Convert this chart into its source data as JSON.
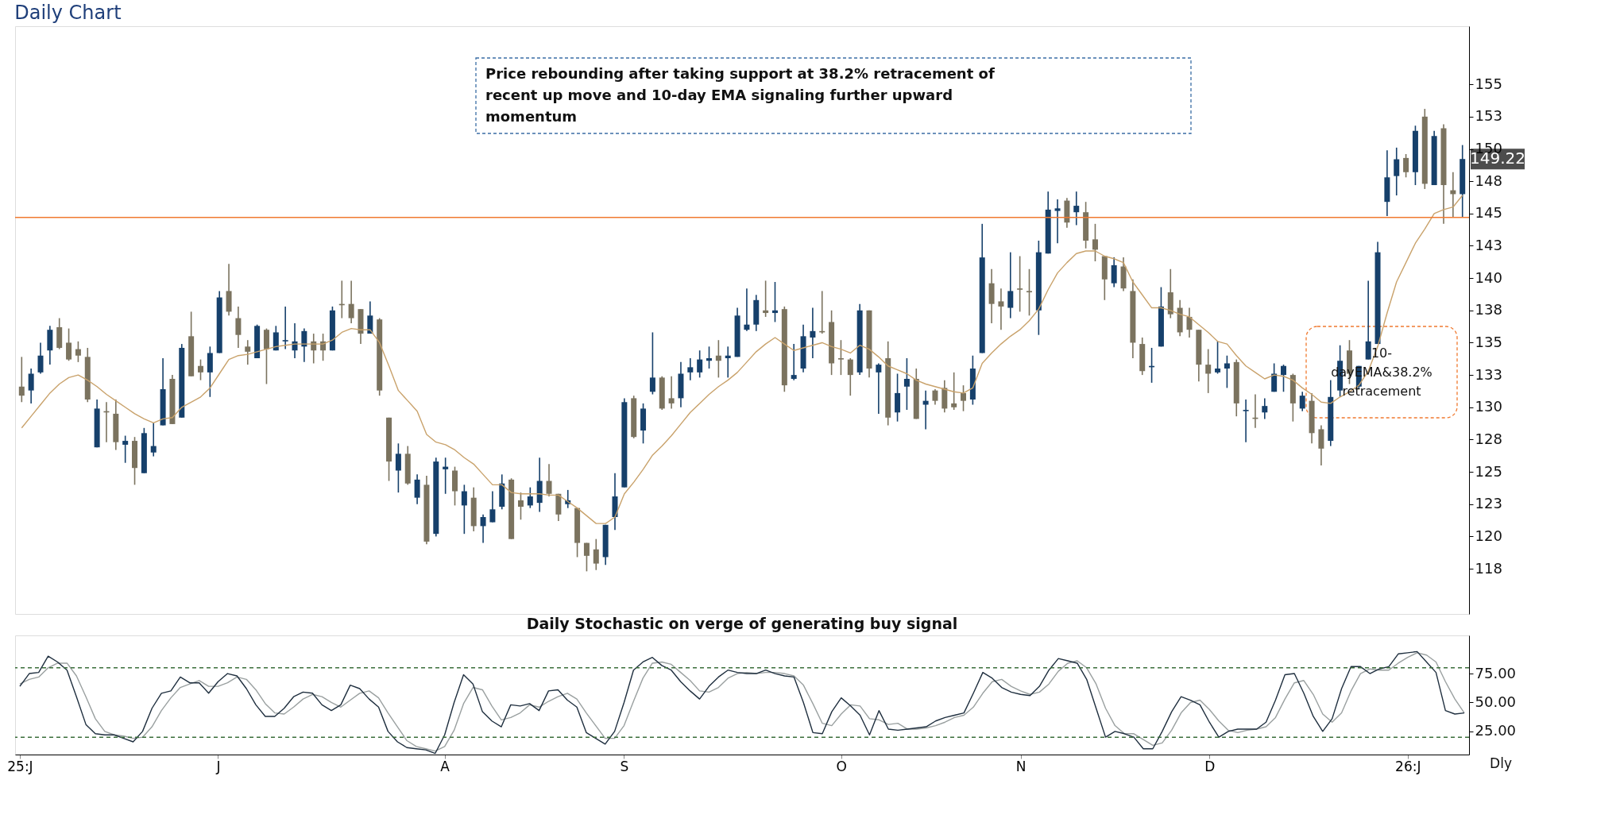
{
  "chart_data": [
    {
      "type": "candlestick",
      "title": "Daily Chart",
      "categories": [
        null,
        null,
        null,
        null,
        null,
        null,
        null,
        null,
        null,
        null,
        null,
        null,
        null,
        null,
        null,
        null,
        null,
        null,
        null,
        null,
        null,
        null,
        null,
        null,
        null,
        null,
        null,
        null,
        null,
        null,
        null,
        null,
        null,
        null,
        null,
        null,
        null,
        null,
        null,
        null,
        null,
        null,
        null,
        null,
        null,
        null,
        null,
        null,
        null,
        null,
        null,
        null,
        null,
        null,
        null,
        null,
        null,
        null,
        null,
        null,
        null,
        null,
        null,
        null,
        null,
        null,
        null,
        null,
        null,
        null,
        null,
        null,
        null,
        null,
        null,
        null,
        null,
        null,
        null,
        null,
        null,
        null,
        null,
        null,
        null,
        null,
        null,
        null,
        null,
        null,
        null,
        null,
        null,
        null,
        null,
        null,
        null,
        null,
        null,
        null,
        null,
        null,
        null,
        null,
        null,
        null,
        null,
        null,
        null,
        null,
        null,
        null,
        null,
        null,
        null,
        null,
        null,
        null,
        null,
        null,
        null,
        null,
        null,
        null,
        null,
        null,
        null,
        null,
        null,
        null,
        null,
        null,
        null,
        null,
        null,
        null,
        null,
        null,
        null,
        null,
        null,
        null,
        null,
        null,
        null,
        null,
        null,
        null,
        null,
        null,
        null,
        null,
        null,
        null
      ],
      "ohlc": [
        [
          131.6,
          133.9,
          130.4,
          130.9
        ],
        [
          131.3,
          133.0,
          130.3,
          132.6
        ],
        [
          132.7,
          135.0,
          132.6,
          134.0
        ],
        [
          134.4,
          136.3,
          133.3,
          136.0
        ],
        [
          136.2,
          136.9,
          134.5,
          134.6
        ],
        [
          135.0,
          136.1,
          133.6,
          133.7
        ],
        [
          134.5,
          135.1,
          133.5,
          134.0
        ],
        [
          133.9,
          134.6,
          130.4,
          130.6
        ],
        [
          126.9,
          130.6,
          126.9,
          129.9
        ],
        [
          129.7,
          130.4,
          127.3,
          129.6
        ],
        [
          129.5,
          130.6,
          126.7,
          127.3
        ],
        [
          127.1,
          127.8,
          125.7,
          127.4
        ],
        [
          127.4,
          127.7,
          124.0,
          125.3
        ],
        [
          124.9,
          128.4,
          124.9,
          128.0
        ],
        [
          126.5,
          128.8,
          126.2,
          127.0
        ],
        [
          128.6,
          133.8,
          128.6,
          131.4
        ],
        [
          132.2,
          132.5,
          128.7,
          128.7
        ],
        [
          129.2,
          134.9,
          129.2,
          134.6
        ],
        [
          135.5,
          137.4,
          132.4,
          132.4
        ],
        [
          133.2,
          133.7,
          132.1,
          132.7
        ],
        [
          132.7,
          134.7,
          130.8,
          134.2
        ],
        [
          134.2,
          139.0,
          134.2,
          138.5
        ],
        [
          139.0,
          141.1,
          137.1,
          137.4
        ],
        [
          136.9,
          137.8,
          134.6,
          135.6
        ],
        [
          134.7,
          135.2,
          133.3,
          134.3
        ],
        [
          133.8,
          136.4,
          133.8,
          136.3
        ],
        [
          136.0,
          136.1,
          131.8,
          134.5
        ],
        [
          134.4,
          136.3,
          134.4,
          135.8
        ],
        [
          135.1,
          137.8,
          134.5,
          135.2
        ],
        [
          134.4,
          136.5,
          133.8,
          135.1
        ],
        [
          134.7,
          136.1,
          133.5,
          135.9
        ],
        [
          135.1,
          135.7,
          133.4,
          134.4
        ],
        [
          135.1,
          135.7,
          133.6,
          134.4
        ],
        [
          134.4,
          137.8,
          134.4,
          137.5
        ],
        [
          138.0,
          139.8,
          136.9,
          137.9
        ],
        [
          138.0,
          139.8,
          136.5,
          136.9
        ],
        [
          137.6,
          137.6,
          134.9,
          135.7
        ],
        [
          135.7,
          138.2,
          135.7,
          137.1
        ],
        [
          136.8,
          136.9,
          130.9,
          131.3
        ],
        [
          129.2,
          129.2,
          124.3,
          125.8
        ],
        [
          125.1,
          127.2,
          123.4,
          126.4
        ],
        [
          126.4,
          127.0,
          124.0,
          124.1
        ],
        [
          123.0,
          124.8,
          122.5,
          124.4
        ],
        [
          124.0,
          124.7,
          119.4,
          119.6
        ],
        [
          120.2,
          126.1,
          120.0,
          125.8
        ],
        [
          125.2,
          126.1,
          123.3,
          125.4
        ],
        [
          125.1,
          125.4,
          122.4,
          123.5
        ],
        [
          122.4,
          124.0,
          120.2,
          123.5
        ],
        [
          123.0,
          123.8,
          120.4,
          120.8
        ],
        [
          120.8,
          121.7,
          119.5,
          121.5
        ],
        [
          121.1,
          123.5,
          121.1,
          122.1
        ],
        [
          122.3,
          124.8,
          122.1,
          124.1
        ],
        [
          124.4,
          124.5,
          119.8,
          119.8
        ],
        [
          122.8,
          123.4,
          121.3,
          122.3
        ],
        [
          122.4,
          123.8,
          122.2,
          123.1
        ],
        [
          122.6,
          126.1,
          121.9,
          124.3
        ],
        [
          124.3,
          125.6,
          123.1,
          123.3
        ],
        [
          123.3,
          123.3,
          121.2,
          121.7
        ],
        [
          122.5,
          123.6,
          122.2,
          122.8
        ],
        [
          122.2,
          122.2,
          118.4,
          119.5
        ],
        [
          119.5,
          119.5,
          117.3,
          118.5
        ],
        [
          119.0,
          119.8,
          117.4,
          117.9
        ],
        [
          118.4,
          120.9,
          117.8,
          120.9
        ],
        [
          121.5,
          124.9,
          120.5,
          123.1
        ],
        [
          123.8,
          130.7,
          123.8,
          130.4
        ],
        [
          130.7,
          130.9,
          127.6,
          127.7
        ],
        [
          128.2,
          130.3,
          127.2,
          129.9
        ],
        [
          131.2,
          135.8,
          131.0,
          132.3
        ],
        [
          132.3,
          132.4,
          129.8,
          129.9
        ],
        [
          130.7,
          132.4,
          129.9,
          130.3
        ],
        [
          130.7,
          133.5,
          130.0,
          132.6
        ],
        [
          132.7,
          133.8,
          132.1,
          133.1
        ],
        [
          132.7,
          134.4,
          132.3,
          133.7
        ],
        [
          133.6,
          134.7,
          133.0,
          133.8
        ],
        [
          134.0,
          135.2,
          132.3,
          133.6
        ],
        [
          133.8,
          134.7,
          132.3,
          134.0
        ],
        [
          133.9,
          137.7,
          133.9,
          137.1
        ],
        [
          136.0,
          139.2,
          135.9,
          136.4
        ],
        [
          136.4,
          138.7,
          135.9,
          138.3
        ],
        [
          137.5,
          139.8,
          137.0,
          137.3
        ],
        [
          137.3,
          139.7,
          136.6,
          137.5
        ],
        [
          137.6,
          137.8,
          131.2,
          131.7
        ],
        [
          132.2,
          134.9,
          132.1,
          132.5
        ],
        [
          133.0,
          136.4,
          132.7,
          135.5
        ],
        [
          135.4,
          137.7,
          133.8,
          135.9
        ],
        [
          135.9,
          139.0,
          135.7,
          135.8
        ],
        [
          136.6,
          137.5,
          132.5,
          133.4
        ],
        [
          133.8,
          135.2,
          132.5,
          133.7
        ],
        [
          133.7,
          133.8,
          130.9,
          132.5
        ],
        [
          132.7,
          138.0,
          132.5,
          137.5
        ],
        [
          137.5,
          137.5,
          132.3,
          133.0
        ],
        [
          132.7,
          133.4,
          129.5,
          133.3
        ],
        [
          133.8,
          135.1,
          128.6,
          129.2
        ],
        [
          129.6,
          132.6,
          128.9,
          131.1
        ],
        [
          131.6,
          133.8,
          129.8,
          132.2
        ],
        [
          132.2,
          133.0,
          129.1,
          129.1
        ],
        [
          130.2,
          131.3,
          128.3,
          130.5
        ],
        [
          131.3,
          131.4,
          130.2,
          130.5
        ],
        [
          131.5,
          132.1,
          129.6,
          129.9
        ],
        [
          130.3,
          132.7,
          129.8,
          130.0
        ],
        [
          131.1,
          131.7,
          129.7,
          130.5
        ],
        [
          130.6,
          134.0,
          130.2,
          133.0
        ],
        [
          134.2,
          144.2,
          134.2,
          141.6
        ],
        [
          139.6,
          140.7,
          136.5,
          138.0
        ],
        [
          138.2,
          139.2,
          136.0,
          137.8
        ],
        [
          137.7,
          142.0,
          136.9,
          139.0
        ],
        [
          139.2,
          141.7,
          137.4,
          139.1
        ],
        [
          139.0,
          140.7,
          137.1,
          138.9
        ],
        [
          137.5,
          142.9,
          135.6,
          142.0
        ],
        [
          141.9,
          146.7,
          141.9,
          145.3
        ],
        [
          145.2,
          146.1,
          142.7,
          145.4
        ],
        [
          146.0,
          146.2,
          143.9,
          144.3
        ],
        [
          145.1,
          146.7,
          144.1,
          145.6
        ],
        [
          145.1,
          145.9,
          142.3,
          142.9
        ],
        [
          143.0,
          144.2,
          141.3,
          142.2
        ],
        [
          141.7,
          141.7,
          138.3,
          139.9
        ],
        [
          139.6,
          141.6,
          139.3,
          141.0
        ],
        [
          140.9,
          141.6,
          139.0,
          139.2
        ],
        [
          139.0,
          139.9,
          133.8,
          135.0
        ],
        [
          134.9,
          135.4,
          132.5,
          132.8
        ],
        [
          133.1,
          134.6,
          131.9,
          133.2
        ],
        [
          134.7,
          139.3,
          134.7,
          137.8
        ],
        [
          138.9,
          140.7,
          136.9,
          137.2
        ],
        [
          137.7,
          138.3,
          135.5,
          135.8
        ],
        [
          137.0,
          137.7,
          135.4,
          136.0
        ],
        [
          136.0,
          136.0,
          132.0,
          133.3
        ],
        [
          133.3,
          134.5,
          131.1,
          132.6
        ],
        [
          132.7,
          135.1,
          132.6,
          133.0
        ],
        [
          133.0,
          134.0,
          131.5,
          133.4
        ],
        [
          133.5,
          133.7,
          129.3,
          130.3
        ],
        [
          129.7,
          130.6,
          127.3,
          129.8
        ],
        [
          129.2,
          131.0,
          128.4,
          129.1
        ],
        [
          129.6,
          130.7,
          129.1,
          130.1
        ],
        [
          131.2,
          133.4,
          131.2,
          132.6
        ],
        [
          132.5,
          133.3,
          131.2,
          133.2
        ],
        [
          132.5,
          132.6,
          128.9,
          130.3
        ],
        [
          129.9,
          131.2,
          129.7,
          130.9
        ],
        [
          130.5,
          131.1,
          127.2,
          128.0
        ],
        [
          128.3,
          128.6,
          125.5,
          126.8
        ],
        [
          127.4,
          132.1,
          127.0,
          130.8
        ],
        [
          131.3,
          134.8,
          130.8,
          133.6
        ],
        [
          134.4,
          135.2,
          131.8,
          132.6
        ],
        [
          131.6,
          133.2,
          131.4,
          133.2
        ],
        [
          133.7,
          139.8,
          133.7,
          135.1
        ],
        [
          134.9,
          142.8,
          134.9,
          142.0
        ],
        [
          145.9,
          149.9,
          144.8,
          147.8
        ],
        [
          147.9,
          150.1,
          146.4,
          149.2
        ],
        [
          149.3,
          149.6,
          147.8,
          148.2
        ],
        [
          148.2,
          151.8,
          147.2,
          151.4
        ],
        [
          152.5,
          153.1,
          146.9,
          147.3
        ],
        [
          147.2,
          151.4,
          147.2,
          151.0
        ],
        [
          151.6,
          151.9,
          144.2,
          147.2
        ],
        [
          146.8,
          148.2,
          144.7,
          146.5
        ],
        [
          146.5,
          150.3,
          144.7,
          149.22
        ]
      ],
      "colors": [
        "#7b735f",
        "#16406b",
        "#16406b",
        "#16406b",
        "#7b735f",
        "#7b735f",
        "#7b735f",
        "#7b735f",
        "#16406b",
        "#7b735f",
        "#7b735f",
        "#16406b",
        "#7b735f",
        "#16406b",
        "#16406b",
        "#16406b",
        "#7b735f",
        "#16406b",
        "#7b735f",
        "#7b735f",
        "#16406b",
        "#16406b",
        "#7b735f",
        "#7b735f",
        "#7b735f",
        "#16406b",
        "#7b735f",
        "#16406b",
        "#16406b",
        "#16406b",
        "#16406b",
        "#7b735f",
        "#7b735f",
        "#16406b",
        "#7b735f",
        "#7b735f",
        "#7b735f",
        "#16406b",
        "#7b735f",
        "#7b735f",
        "#16406b",
        "#7b735f",
        "#16406b",
        "#7b735f",
        "#16406b",
        "#16406b",
        "#7b735f",
        "#16406b",
        "#7b735f",
        "#16406b",
        "#16406b",
        "#16406b",
        "#7b735f",
        "#7b735f",
        "#16406b",
        "#16406b",
        "#7b735f",
        "#7b735f",
        "#16406b",
        "#7b735f",
        "#7b735f",
        "#7b735f",
        "#16406b",
        "#16406b",
        "#16406b",
        "#7b735f",
        "#16406b",
        "#16406b",
        "#7b735f",
        "#7b735f",
        "#16406b",
        "#16406b",
        "#16406b",
        "#16406b",
        "#7b735f",
        "#16406b",
        "#16406b",
        "#16406b",
        "#16406b",
        "#7b735f",
        "#16406b",
        "#7b735f",
        "#16406b",
        "#16406b",
        "#16406b",
        "#7b735f",
        "#7b735f",
        "#7b735f",
        "#7b735f",
        "#16406b",
        "#7b735f",
        "#16406b",
        "#7b735f",
        "#16406b",
        "#16406b",
        "#7b735f",
        "#16406b",
        "#7b735f",
        "#7b735f",
        "#7b735f",
        "#7b735f",
        "#16406b",
        "#16406b",
        "#7b735f",
        "#7b735f",
        "#16406b",
        "#7b735f",
        "#7b735f",
        "#16406b",
        "#16406b",
        "#16406b",
        "#7b735f",
        "#16406b",
        "#7b735f",
        "#7b735f",
        "#7b735f",
        "#16406b",
        "#7b735f",
        "#7b735f",
        "#7b735f",
        "#16406b",
        "#16406b",
        "#7b735f",
        "#7b735f",
        "#7b735f",
        "#7b735f",
        "#7b735f",
        "#16406b",
        "#16406b",
        "#7b735f",
        "#16406b",
        "#7b735f",
        "#16406b",
        "#16406b",
        "#16406b",
        "#7b735f",
        "#16406b",
        "#7b735f",
        "#7b735f",
        "#16406b",
        "#16406b",
        "#7b735f",
        "#16406b",
        "#16406b",
        "#16406b",
        "#16406b",
        "#16406b",
        "#7b735f",
        "#16406b",
        "#7b735f",
        "#16406b",
        "#7b735f",
        "#7b735f",
        "#16406b"
      ],
      "series": [
        {
          "type": "line",
          "color": "#c9a26b",
          "values": [
            128.4,
            129.3,
            130.2,
            131.1,
            131.8,
            132.3,
            132.5,
            132.1,
            131.6,
            131.0,
            130.5,
            130.0,
            129.5,
            129.1,
            128.8,
            129.1,
            129.2,
            130.0,
            130.4,
            130.8,
            131.5,
            132.6,
            133.7,
            134.0,
            134.1,
            134.3,
            134.5,
            134.7,
            134.8,
            134.9,
            134.9,
            134.9,
            134.9,
            135.2,
            135.8,
            136.1,
            136.0,
            136.0,
            135.0,
            133.2,
            131.3,
            130.5,
            129.7,
            127.9,
            127.3,
            127.1,
            126.7,
            126.1,
            125.6,
            124.8,
            124.0,
            124.0,
            123.4,
            123.3,
            123.3,
            123.3,
            123.2,
            123.2,
            122.7,
            122.2,
            121.6,
            121.0,
            121.0,
            121.5,
            123.3,
            124.2,
            125.2,
            126.3,
            127.0,
            127.8,
            128.7,
            129.6,
            130.3,
            131.0,
            131.6,
            132.1,
            132.7,
            133.5,
            134.3,
            134.9,
            135.4,
            134.9,
            134.4,
            134.6,
            134.8,
            135.0,
            134.7,
            134.5,
            134.2,
            134.8,
            134.5,
            133.9,
            133.2,
            132.9,
            132.6,
            132.1,
            131.8,
            131.6,
            131.4,
            131.2,
            131.1,
            131.5,
            133.4,
            134.2,
            134.9,
            135.5,
            136.0,
            136.7,
            137.6,
            139.1,
            140.4,
            141.2,
            141.9,
            142.1,
            142.1,
            141.7,
            141.5,
            141.2,
            139.7,
            138.7,
            137.7,
            137.7,
            137.5,
            137.2,
            137.0,
            136.4,
            135.8,
            135.1,
            134.9,
            134.0,
            133.2,
            132.7,
            132.2,
            132.5,
            132.4,
            132.1,
            131.5,
            131.0,
            130.4,
            130.3,
            130.8,
            131.2,
            131.7,
            132.8,
            134.7,
            137.3,
            139.7,
            141.2,
            142.7,
            143.8,
            145.0,
            145.3,
            145.5,
            146.4
          ]
        }
      ],
      "ylim": [
        114,
        159.5
      ],
      "yticks": [
        {
          "value": 117.5,
          "label": "118"
        },
        120,
        {
          "value": 122.5,
          "label": "123"
        },
        125,
        {
          "value": 127.5,
          "label": "128"
        },
        130,
        {
          "value": 132.5,
          "label": "133"
        },
        135,
        {
          "value": 137.5,
          "label": "138"
        },
        140,
        {
          "value": 142.5,
          "label": "143"
        },
        145,
        {
          "value": 147.5,
          "label": "148"
        },
        150,
        {
          "value": 152.5,
          "label": "153"
        },
        155
      ],
      "tick_labels": "y",
      "ref_lines": [
        {
          "axis": "y",
          "value": 144.7,
          "color": "#f07a30"
        }
      ],
      "annotations": [
        "Price rebounding after taking support at 38.2% retracement of recent up move and 10-day EMA signaling further upward momentum",
        "10-dayEMA&38.2% retracement",
        "149.22"
      ]
    },
    {
      "type": "line",
      "title": "Daily Stochastic on verge of generating buy signal",
      "categories": [
        "25:J",
        null,
        null,
        null,
        null,
        null,
        null,
        null,
        null,
        null,
        null,
        null,
        null,
        null,
        null,
        null,
        null,
        null,
        null,
        null,
        null,
        "J",
        null,
        null,
        null,
        null,
        null,
        null,
        null,
        null,
        null,
        null,
        null,
        null,
        null,
        null,
        null,
        null,
        null,
        null,
        null,
        null,
        null,
        null,
        null,
        "A",
        null,
        null,
        null,
        null,
        null,
        null,
        null,
        null,
        null,
        null,
        null,
        null,
        null,
        null,
        null,
        null,
        null,
        null,
        "S",
        null,
        null,
        null,
        null,
        null,
        null,
        null,
        null,
        null,
        null,
        null,
        null,
        null,
        null,
        null,
        null,
        null,
        null,
        null,
        null,
        null,
        null,
        "O",
        null,
        null,
        null,
        null,
        null,
        null,
        null,
        null,
        null,
        null,
        null,
        null,
        null,
        null,
        null,
        null,
        null,
        null,
        "N",
        null,
        null,
        null,
        null,
        null,
        null,
        null,
        null,
        null,
        null,
        null,
        null,
        null,
        null,
        null,
        null,
        null,
        null,
        null,
        "D",
        null,
        null,
        null,
        null,
        null,
        null,
        null,
        null,
        null,
        null,
        null,
        null,
        null,
        null,
        null,
        null,
        null,
        null,
        null,
        null,
        "26:J",
        null,
        null,
        null,
        null,
        null,
        null
      ],
      "series": [
        {
          "color": "#9aa0a0",
          "values": [
            66,
            70,
            72,
            80,
            84,
            84,
            73,
            55,
            36,
            25,
            22,
            21,
            19,
            20,
            29,
            43,
            54,
            63,
            66,
            69,
            64,
            64,
            67,
            72,
            70,
            61,
            49,
            41,
            40,
            46,
            53,
            57,
            55,
            50,
            46,
            52,
            58,
            60,
            54,
            41,
            29,
            17,
            12,
            10,
            8,
            12,
            26,
            49,
            63,
            61,
            47,
            35,
            37,
            41,
            48,
            46,
            51,
            55,
            58,
            53,
            41,
            30,
            19,
            19,
            30,
            51,
            71,
            84,
            85,
            83,
            76,
            69,
            60,
            59,
            63,
            71,
            75,
            76,
            75,
            76,
            76,
            75,
            73,
            65,
            49,
            32,
            30,
            40,
            48,
            47,
            36,
            35,
            31,
            32,
            27,
            27,
            28,
            30,
            33,
            37,
            39,
            46,
            58,
            68,
            70,
            64,
            60,
            57,
            59,
            66,
            77,
            84,
            86,
            80,
            66,
            45,
            30,
            23,
            23,
            18,
            13,
            15,
            26,
            41,
            50,
            52,
            44,
            34,
            26,
            24,
            26,
            27,
            29,
            37,
            53,
            67,
            69,
            57,
            40,
            33,
            41,
            60,
            75,
            79,
            78,
            78,
            84,
            89,
            93,
            91,
            85,
            68,
            53,
            41
          ]
        },
        {
          "color": "#1f2f3f",
          "values": [
            64,
            75,
            76,
            90,
            85,
            78,
            55,
            31,
            23,
            22,
            22,
            19,
            16,
            25,
            45,
            58,
            60,
            72,
            67,
            67,
            58,
            68,
            75,
            73,
            62,
            48,
            38,
            38,
            45,
            55,
            59,
            58,
            48,
            43,
            48,
            65,
            62,
            53,
            46,
            25,
            16,
            11,
            10,
            9,
            6,
            22,
            50,
            74,
            66,
            42,
            34,
            29,
            48,
            47,
            49,
            43,
            60,
            61,
            52,
            46,
            24,
            19,
            14,
            25,
            50,
            78,
            85,
            89,
            82,
            78,
            68,
            60,
            53,
            64,
            72,
            78,
            76,
            75,
            75,
            78,
            75,
            73,
            72,
            50,
            24,
            23,
            42,
            54,
            47,
            39,
            22,
            43,
            27,
            26,
            27,
            28,
            29,
            34,
            37,
            39,
            41,
            58,
            76,
            71,
            63,
            59,
            57,
            56,
            64,
            78,
            88,
            86,
            84,
            70,
            45,
            20,
            25,
            23,
            20,
            10,
            10,
            25,
            42,
            55,
            52,
            48,
            33,
            20,
            25,
            27,
            27,
            27,
            33,
            52,
            74,
            75,
            58,
            38,
            25,
            36,
            62,
            81,
            81,
            75,
            79,
            81,
            92,
            93,
            94,
            85,
            76,
            43,
            40,
            41
          ]
        }
      ],
      "ylim": [
        5,
        108
      ],
      "yticks": [
        {
          "value": 25,
          "label": "25.00"
        },
        {
          "value": 50,
          "label": "50.00"
        },
        {
          "value": 75,
          "label": "75.00"
        }
      ],
      "ref_lines": [
        {
          "axis": "y",
          "value": 80,
          "color": "#3b6e3b",
          "line_style": "dashed"
        },
        {
          "axis": "y",
          "value": 20,
          "color": "#3b6e3b",
          "line_style": "dashed"
        }
      ],
      "annotations": [
        "Dly"
      ]
    }
  ]
}
